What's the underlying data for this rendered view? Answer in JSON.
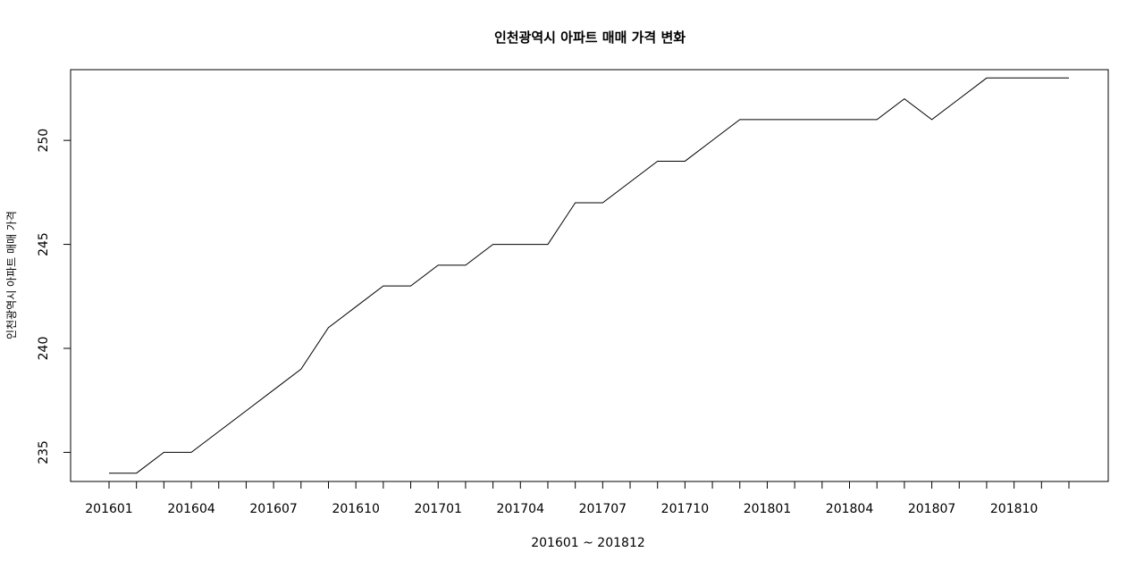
{
  "chart_data": {
    "type": "line",
    "title": "인천광역시 아파트 매매 가격 변화",
    "xlabel": "201601 ~ 201812",
    "ylabel": "인천광역시 아파트 매매 가격",
    "x": [
      "201601",
      "201602",
      "201603",
      "201604",
      "201605",
      "201606",
      "201607",
      "201608",
      "201609",
      "201610",
      "201611",
      "201612",
      "201701",
      "201702",
      "201703",
      "201704",
      "201705",
      "201706",
      "201707",
      "201708",
      "201709",
      "201710",
      "201711",
      "201712",
      "201801",
      "201802",
      "201803",
      "201804",
      "201805",
      "201806",
      "201807",
      "201808",
      "201809",
      "201810",
      "201811",
      "201812"
    ],
    "x_tick_labels": [
      "201601",
      "201604",
      "201607",
      "201610",
      "201701",
      "201704",
      "201707",
      "201710",
      "201801",
      "201804",
      "201807",
      "201810"
    ],
    "series": [
      {
        "values": [
          234,
          234,
          235,
          235,
          236,
          237,
          238,
          239,
          241,
          242,
          243,
          243,
          244,
          244,
          245,
          245,
          245,
          247,
          247,
          248,
          249,
          249,
          250,
          251,
          251,
          251,
          251,
          251,
          251,
          252,
          251,
          252,
          253,
          253,
          253,
          253
        ],
        "color": "#000000"
      }
    ],
    "y_ticks": [
      235,
      240,
      245,
      250
    ],
    "ylim": [
      233.6,
      253.4
    ],
    "grid": false,
    "legend": "none"
  }
}
